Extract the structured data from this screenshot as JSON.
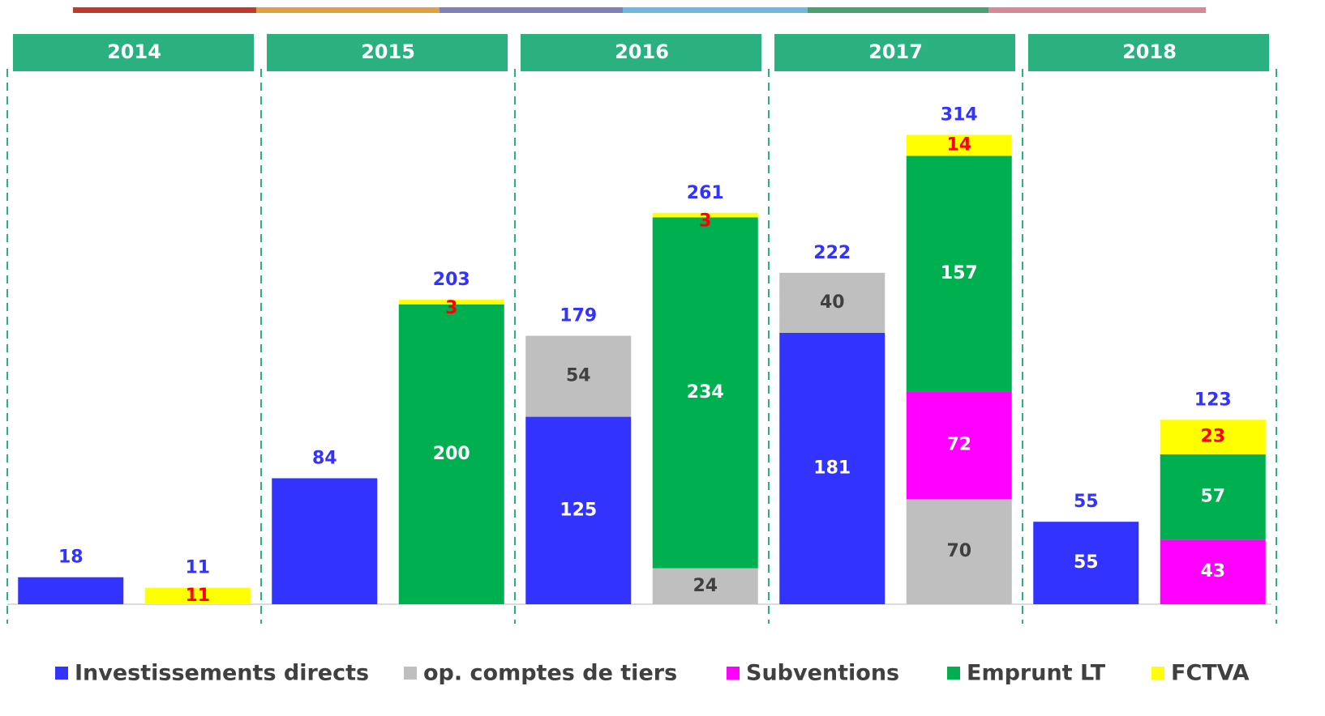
{
  "chart_data": {
    "type": "stacked_bar",
    "groups": [
      "2014",
      "2015",
      "2016",
      "2017",
      "2018"
    ],
    "categories": [
      null,
      null,
      null,
      null,
      null,
      null,
      null,
      null,
      null,
      null
    ],
    "ylim": [
      0,
      350
    ],
    "legend": "bottom",
    "series": [
      {
        "name": "Investissements directs",
        "color": "#3333ff",
        "label_color": "#ffffff",
        "values": [
          18,
          null,
          84,
          null,
          125,
          null,
          181,
          null,
          55,
          null
        ],
        "show_labels": [
          false,
          true,
          false,
          true,
          true,
          true,
          true,
          true,
          true,
          true
        ]
      },
      {
        "name": "op. comptes de tiers",
        "color": "#bfbfbf",
        "label_color": "#404040",
        "values": [
          null,
          null,
          null,
          null,
          54,
          24,
          40,
          70,
          null,
          null
        ]
      },
      {
        "name": "Subventions",
        "color": "#ff00ff",
        "label_color": "#ffffff",
        "values": [
          null,
          null,
          null,
          null,
          null,
          null,
          null,
          72,
          null,
          43
        ]
      },
      {
        "name": "Emprunt LT",
        "color": "#00b050",
        "label_color": "#ffffff",
        "values": [
          null,
          null,
          null,
          200,
          null,
          234,
          null,
          157,
          null,
          57
        ]
      },
      {
        "name": "FCTVA",
        "color": "#ffff00",
        "label_color": "#ff0000",
        "values": [
          null,
          11,
          null,
          3,
          null,
          3,
          null,
          14,
          null,
          23
        ]
      }
    ],
    "totals": [
      18,
      11,
      84,
      203,
      179,
      261,
      222,
      314,
      55,
      123
    ],
    "totals_color": "#3333ff"
  }
}
